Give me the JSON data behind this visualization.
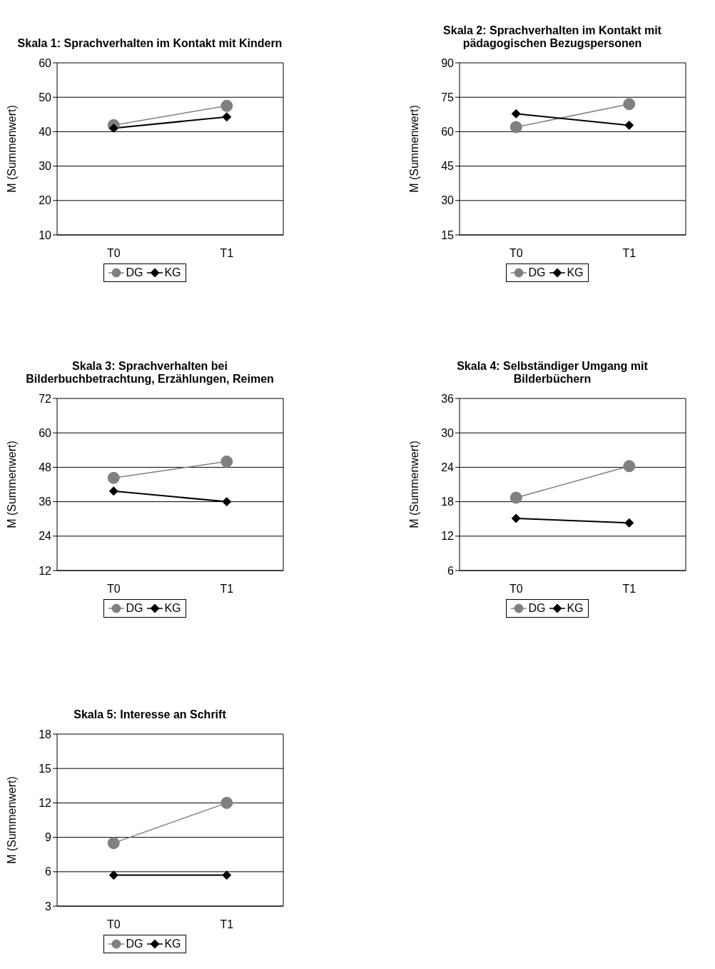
{
  "chart_data": [
    {
      "type": "line",
      "title": "Skala 1: Sprachverhalten im Kontakt mit Kindern",
      "ylabel": "M (Summenwert)",
      "categories": [
        "T0",
        "T1"
      ],
      "ylim": [
        10,
        60
      ],
      "yticks": [
        10,
        20,
        30,
        40,
        50,
        60
      ],
      "grid": "y",
      "legend": "bottom",
      "series": [
        {
          "name": "DG",
          "color": "#808080",
          "marker": "circle",
          "values": [
            41.9,
            47.5
          ]
        },
        {
          "name": "KG",
          "color": "#000000",
          "marker": "diamond",
          "values": [
            41,
            44.3
          ]
        }
      ]
    },
    {
      "type": "line",
      "title": "Skala 2: Sprachverhalten im Kontakt mit pädagogischen Bezugspersonen",
      "ylabel": "M (Summenwert)",
      "categories": [
        "T0",
        "T1"
      ],
      "ylim": [
        15,
        90
      ],
      "yticks": [
        15,
        30,
        45,
        60,
        75,
        90
      ],
      "grid": "y",
      "legend": "bottom",
      "series": [
        {
          "name": "DG",
          "color": "#808080",
          "marker": "circle",
          "values": [
            62,
            72
          ]
        },
        {
          "name": "KG",
          "color": "#000000",
          "marker": "diamond",
          "values": [
            67.8,
            62.8
          ]
        }
      ]
    },
    {
      "type": "line",
      "title": "Skala 3: Sprachverhalten bei Bilderbuchbetrachtung, Erzählungen, Reimen",
      "ylabel": "M (Summenwert)",
      "categories": [
        "T0",
        "T1"
      ],
      "ylim": [
        12,
        72
      ],
      "yticks": [
        12,
        24,
        36,
        48,
        60,
        72
      ],
      "grid": "y",
      "legend": "bottom",
      "series": [
        {
          "name": "DG",
          "color": "#808080",
          "marker": "circle",
          "values": [
            44.3,
            50
          ]
        },
        {
          "name": "KG",
          "color": "#000000",
          "marker": "diamond",
          "values": [
            39.7,
            36
          ]
        }
      ]
    },
    {
      "type": "line",
      "title": "Skala 4: Selbständiger Umgang mit Bilderbüchern",
      "ylabel": "M (Summenwert)",
      "categories": [
        "T0",
        "T1"
      ],
      "ylim": [
        6,
        36
      ],
      "yticks": [
        6,
        12,
        18,
        24,
        30,
        36
      ],
      "grid": "y",
      "legend": "bottom",
      "series": [
        {
          "name": "DG",
          "color": "#808080",
          "marker": "circle",
          "values": [
            18.7,
            24.2
          ]
        },
        {
          "name": "KG",
          "color": "#000000",
          "marker": "diamond",
          "values": [
            15.1,
            14.3
          ]
        }
      ]
    },
    {
      "type": "line",
      "title": "Skala 5: Interesse an Schrift",
      "ylabel": "M (Summenwert)",
      "categories": [
        "T0",
        "T1"
      ],
      "ylim": [
        3,
        18
      ],
      "yticks": [
        3,
        6,
        9,
        12,
        15,
        18
      ],
      "grid": "y",
      "legend": "bottom",
      "series": [
        {
          "name": "DG",
          "color": "#808080",
          "marker": "circle",
          "values": [
            8.5,
            12
          ]
        },
        {
          "name": "KG",
          "color": "#000000",
          "marker": "diamond",
          "values": [
            5.7,
            5.7
          ]
        }
      ]
    }
  ]
}
